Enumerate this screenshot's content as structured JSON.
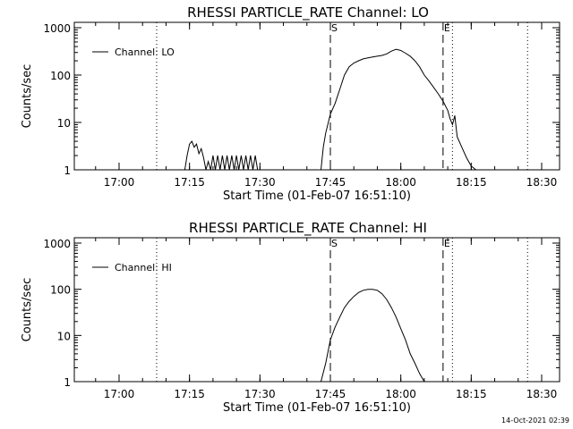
{
  "chart_data": [
    {
      "type": "line",
      "title": "RHESSI PARTICLE_RATE Channel: LO",
      "xlabel": "Start Time (01-Feb-07 16:51:10)",
      "ylabel": "Counts/sec",
      "yscale": "log",
      "ylim": [
        1,
        1000
      ],
      "ytick_labels": [
        "1",
        "10",
        "100",
        "1000"
      ],
      "xtick_labels": [
        "17:00",
        "17:15",
        "17:30",
        "17:45",
        "18:00",
        "18:15",
        "18:30"
      ],
      "legend": "Channel: LO",
      "markers": {
        "start": "S",
        "end": "E"
      },
      "series": [
        {
          "name": "Channel: LO",
          "x": [
            "17:14",
            "17:14.5",
            "17:15",
            "17:15.5",
            "17:16",
            "17:16.5",
            "17:17",
            "17:17.5",
            "17:18",
            "17:18.5",
            "17:19",
            "17:19.5",
            "17:20",
            "17:20.5",
            "17:21",
            "17:21.5",
            "17:22",
            "17:22.5",
            "17:23",
            "17:23.5",
            "17:24",
            "17:24.5",
            "17:25",
            "17:25.5",
            "17:26",
            "17:26.5",
            "17:27",
            "17:27.5",
            "17:28",
            "17:28.5",
            "17:29",
            "17:29.5",
            "17:30",
            "17:30.5",
            "17:31",
            "17:31.5",
            "17:32",
            "17:43",
            "17:43.5",
            "17:44",
            "17:45",
            "17:46",
            "17:47",
            "17:48",
            "17:49",
            "17:50",
            "17:51",
            "17:52",
            "17:53",
            "17:54",
            "17:55",
            "17:56",
            "17:57",
            "17:58",
            "17:59",
            "18:00",
            "18:01",
            "18:02",
            "18:03",
            "18:04",
            "18:05",
            "18:06",
            "18:07",
            "18:08",
            "18:09",
            "18:10",
            "18:10.5",
            "18:11",
            "18:11.5",
            "18:12",
            "18:13",
            "18:14",
            "18:15",
            "18:16"
          ],
          "y": [
            1,
            2,
            3.5,
            4,
            3,
            3.5,
            2.2,
            2.8,
            1.8,
            1,
            1.5,
            1,
            2,
            1,
            2,
            1,
            2,
            1,
            2,
            1,
            2,
            1,
            2,
            1,
            2,
            1,
            2,
            1,
            2,
            1,
            2,
            1,
            1,
            1,
            1,
            1,
            1,
            1,
            3,
            6,
            15,
            25,
            50,
            100,
            150,
            180,
            200,
            220,
            230,
            240,
            250,
            260,
            280,
            320,
            350,
            330,
            290,
            250,
            200,
            150,
            100,
            75,
            55,
            40,
            28,
            18,
            12,
            9,
            14,
            5,
            3,
            1.8,
            1.2,
            1
          ]
        }
      ]
    },
    {
      "type": "line",
      "title": "RHESSI PARTICLE_RATE Channel: HI",
      "xlabel": "Start Time (01-Feb-07 16:51:10)",
      "ylabel": "Counts/sec",
      "yscale": "log",
      "ylim": [
        1,
        1000
      ],
      "ytick_labels": [
        "1",
        "10",
        "100",
        "1000"
      ],
      "xtick_labels": [
        "17:00",
        "17:15",
        "17:30",
        "17:45",
        "18:00",
        "18:15",
        "18:30"
      ],
      "legend": "Channel: HI",
      "markers": {
        "start": "S",
        "end": "E"
      },
      "series": [
        {
          "name": "Channel: HI",
          "x": [
            "17:43",
            "17:44",
            "17:45",
            "17:46",
            "17:47",
            "17:48",
            "17:49",
            "17:50",
            "17:51",
            "17:52",
            "17:53",
            "17:54",
            "17:55",
            "17:56",
            "17:57",
            "17:58",
            "17:59",
            "18:00",
            "18:01",
            "18:02",
            "18:03",
            "18:04",
            "18:05"
          ],
          "y": [
            1,
            2.5,
            8,
            15,
            25,
            40,
            55,
            70,
            85,
            95,
            100,
            100,
            95,
            80,
            60,
            40,
            25,
            14,
            8,
            4,
            2.5,
            1.5,
            1
          ]
        }
      ]
    }
  ],
  "footer": {
    "timestamp": "14-Oct-2021 02:39"
  }
}
